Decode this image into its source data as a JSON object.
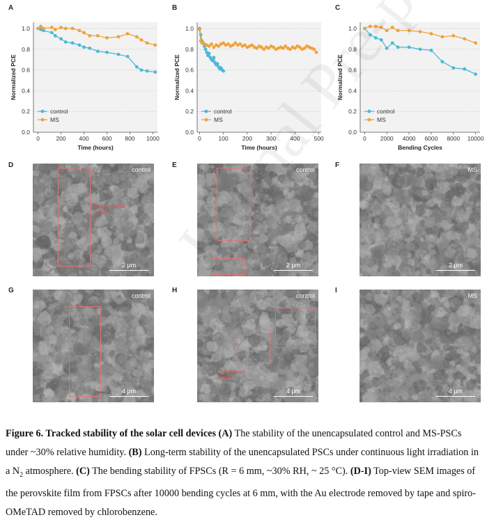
{
  "figure": {
    "panels": {
      "A": "A",
      "B": "B",
      "C": "C",
      "D": "D",
      "E": "E",
      "F": "F",
      "G": "G",
      "H": "H",
      "I": "I"
    },
    "sem": {
      "D": {
        "tag": "control",
        "scale": "2 μm",
        "annotation_line1": "Intergranular",
        "annotation_line2": "crack"
      },
      "E": {
        "tag": "control",
        "scale": "2 μm"
      },
      "F": {
        "tag": "MS",
        "scale": "2 μm"
      },
      "G": {
        "tag": "control",
        "scale": "4 μm"
      },
      "H": {
        "tag": "control",
        "scale": "4 μm",
        "annotation_line1": "Transverse",
        "annotation_line2": "crack"
      },
      "I": {
        "tag": "MS",
        "scale": "4 μm"
      }
    },
    "watermark": "Journal Pre-proof"
  },
  "caption": {
    "title": "Figure 6. Tracked stability of the solar cell devices",
    "partA_label": "(A)",
    "partA_text": "The stability of the unencapsulated control and MS-PSCs under ~30% relative humidity.",
    "partB_label": "(B)",
    "partB_text_1": "Long-term stability of the unencapsulated PSCs under continuous light irradiation in a N",
    "partB_sub": "2",
    "partB_text_2": "atmosphere.",
    "partC_label": "(C)",
    "partC_text": "The bending stability of FPSCs (R = 6 mm, ~30% RH, ~ 25 °C).",
    "partDI_label": "(D-I)",
    "partDI_text": "Top-view SEM images of the perovskite film from FPSCs after 10000 bending cycles at 6 mm, with the Au electrode removed by tape and spiro-OMeTAD removed by chlorobenzene."
  },
  "colors": {
    "control": "#4db8d9",
    "MS": "#f0a23c",
    "crack_box": "#e57373"
  },
  "chart_data": [
    {
      "type": "line",
      "panel": "A",
      "xlabel": "Time (hours)",
      "ylabel": "Normalized PCE",
      "xlim": [
        -40,
        1040
      ],
      "ylim": [
        0.0,
        1.06
      ],
      "xticks": [
        0,
        200,
        400,
        600,
        800,
        1000
      ],
      "yticks": [
        0.0,
        0.2,
        0.4,
        0.6,
        0.8,
        1.0
      ],
      "legend": "bottom-left",
      "grid": "horizontal dotted",
      "series": [
        {
          "name": "control",
          "x": [
            0,
            24,
            48,
            120,
            150,
            200,
            240,
            300,
            360,
            400,
            450,
            520,
            600,
            700,
            780,
            860,
            900,
            950,
            1020
          ],
          "y": [
            1.0,
            0.99,
            0.98,
            0.96,
            0.93,
            0.9,
            0.87,
            0.86,
            0.84,
            0.82,
            0.81,
            0.78,
            0.77,
            0.75,
            0.73,
            0.63,
            0.6,
            0.59,
            0.58
          ]
        },
        {
          "name": "MS",
          "x": [
            0,
            24,
            48,
            120,
            150,
            200,
            240,
            300,
            360,
            400,
            450,
            520,
            600,
            700,
            780,
            860,
            900,
            950,
            1020
          ],
          "y": [
            1.0,
            1.02,
            1.0,
            1.01,
            0.99,
            1.01,
            1.0,
            1.0,
            0.98,
            0.96,
            0.93,
            0.93,
            0.91,
            0.92,
            0.95,
            0.92,
            0.89,
            0.86,
            0.84
          ]
        }
      ]
    },
    {
      "type": "line",
      "panel": "B",
      "xlabel": "Time (hours)",
      "ylabel": "Normalized PCE",
      "xlim": [
        -10,
        510
      ],
      "ylim": [
        0.0,
        1.06
      ],
      "xticks": [
        0,
        100,
        200,
        300,
        400,
        500
      ],
      "yticks": [
        0.0,
        0.2,
        0.4,
        0.6,
        0.8,
        1.0
      ],
      "legend": "bottom-left",
      "grid": "horizontal dotted",
      "series": [
        {
          "name": "control",
          "x": [
            0,
            5,
            10,
            15,
            20,
            25,
            30,
            35,
            40,
            45,
            50,
            55,
            60,
            65,
            70,
            75,
            80,
            85,
            90,
            95,
            100
          ],
          "y": [
            1.0,
            0.94,
            0.88,
            0.86,
            0.83,
            0.8,
            0.77,
            0.74,
            0.76,
            0.72,
            0.7,
            0.69,
            0.72,
            0.67,
            0.65,
            0.66,
            0.63,
            0.61,
            0.62,
            0.6,
            0.59
          ]
        },
        {
          "name": "MS",
          "x": [
            0,
            5,
            10,
            20,
            30,
            40,
            50,
            60,
            70,
            80,
            90,
            100,
            110,
            120,
            130,
            140,
            150,
            160,
            170,
            180,
            190,
            200,
            210,
            220,
            230,
            240,
            250,
            260,
            270,
            280,
            290,
            300,
            310,
            320,
            330,
            340,
            350,
            360,
            370,
            380,
            390,
            400,
            410,
            420,
            430,
            440,
            450,
            460,
            470,
            480,
            490
          ],
          "y": [
            0.99,
            0.88,
            0.86,
            0.85,
            0.84,
            0.83,
            0.85,
            0.82,
            0.84,
            0.83,
            0.85,
            0.86,
            0.84,
            0.85,
            0.83,
            0.84,
            0.86,
            0.84,
            0.85,
            0.83,
            0.84,
            0.82,
            0.83,
            0.84,
            0.82,
            0.81,
            0.83,
            0.82,
            0.8,
            0.82,
            0.81,
            0.83,
            0.82,
            0.8,
            0.81,
            0.82,
            0.81,
            0.83,
            0.81,
            0.8,
            0.82,
            0.81,
            0.83,
            0.82,
            0.8,
            0.81,
            0.83,
            0.82,
            0.81,
            0.8,
            0.77
          ]
        }
      ]
    },
    {
      "type": "line",
      "panel": "C",
      "xlabel": "Bending Cycles",
      "ylabel": "Normalized PCE",
      "xlim": [
        -400,
        10400
      ],
      "ylim": [
        0.0,
        1.06
      ],
      "xticks": [
        0,
        2000,
        4000,
        6000,
        8000,
        10000
      ],
      "yticks": [
        0.0,
        0.2,
        0.4,
        0.6,
        0.8,
        1.0
      ],
      "legend": "bottom-left",
      "grid": "horizontal dotted",
      "series": [
        {
          "name": "control",
          "x": [
            0,
            500,
            1000,
            1500,
            2000,
            2500,
            3000,
            4000,
            5000,
            6000,
            7000,
            8000,
            9000,
            10000
          ],
          "y": [
            1.0,
            0.94,
            0.91,
            0.89,
            0.81,
            0.86,
            0.82,
            0.82,
            0.8,
            0.79,
            0.68,
            0.62,
            0.61,
            0.56
          ]
        },
        {
          "name": "MS",
          "x": [
            0,
            500,
            1000,
            1500,
            2000,
            2500,
            3000,
            4000,
            5000,
            6000,
            7000,
            8000,
            9000,
            10000
          ],
          "y": [
            1.0,
            1.02,
            1.02,
            1.01,
            0.98,
            1.01,
            0.98,
            0.98,
            0.97,
            0.95,
            0.92,
            0.93,
            0.9,
            0.86
          ]
        }
      ]
    }
  ]
}
